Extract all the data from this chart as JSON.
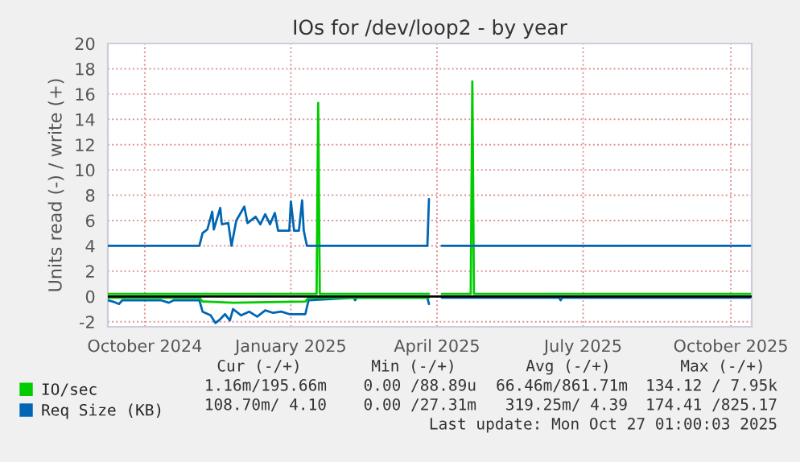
{
  "chart_data": {
    "type": "line",
    "title": "IOs for /dev/loop2 - by year",
    "ylabel": "Units read (-) / write (+)",
    "xlim": [
      "2024-09-23",
      "2025-10-29"
    ],
    "ylim": [
      -2.4,
      20
    ],
    "xticks": [
      {
        "value": "2024-10-16",
        "label": "October 2024"
      },
      {
        "value": "2025-01-15",
        "label": "January 2025"
      },
      {
        "value": "2025-04-16",
        "label": "April 2025"
      },
      {
        "value": "2025-07-16",
        "label": "July 2025"
      },
      {
        "value": "2025-10-16",
        "label": "October 2025"
      }
    ],
    "yticks": [
      -2,
      0,
      2,
      4,
      6,
      8,
      10,
      12,
      14,
      16,
      18,
      20
    ],
    "grid": true,
    "legend": "bottom",
    "ref_lines": [
      {
        "axis": "y",
        "value": 0,
        "color": "#000000"
      }
    ],
    "series": [
      {
        "name": "IO/sec",
        "color": "#00cc00",
        "x": [
          "2024-09-23",
          "2025-01-31",
          "2025-02-01",
          "2025-02-02",
          "2025-04-11",
          "2025-04-12",
          "2025-04-19",
          "2025-05-07",
          "2025-05-08",
          "2025-05-09",
          "2025-10-28"
        ],
        "values": [
          0.2,
          0.2,
          15.3,
          0.2,
          0.2,
          null,
          0.2,
          0.2,
          17.0,
          0.2,
          0.2
        ]
      },
      {
        "name": "Req Size (KB)",
        "color": "#0066b3",
        "x": [
          "2024-09-23",
          "2024-11-19",
          "2024-11-21",
          "2024-11-24",
          "2024-11-27",
          "2024-11-28",
          "2024-12-02",
          "2024-12-03",
          "2024-12-07",
          "2024-12-09",
          "2024-12-12",
          "2024-12-17",
          "2024-12-19",
          "2024-12-24",
          "2024-12-27",
          "2024-12-30",
          "2025-01-02",
          "2025-01-05",
          "2025-01-07",
          "2025-01-14",
          "2025-01-15",
          "2025-01-17",
          "2025-01-20",
          "2025-01-22",
          "2025-01-23",
          "2025-01-25",
          "2025-04-10",
          "2025-04-11",
          "2025-04-12",
          "2025-04-19",
          "2025-10-28"
        ],
        "values": [
          4.0,
          4.0,
          5.0,
          5.3,
          6.7,
          5.3,
          7.0,
          5.7,
          5.8,
          4.0,
          6.0,
          7.1,
          5.8,
          6.3,
          5.7,
          6.5,
          5.7,
          6.6,
          5.2,
          5.2,
          7.5,
          5.2,
          5.2,
          7.6,
          5.2,
          4.0,
          4.0,
          7.7,
          null,
          4.0,
          4.0
        ]
      },
      {
        "color": "#0066b3",
        "x": [
          "2024-09-23",
          "2024-09-26",
          "2024-09-30",
          "2024-10-02",
          "2024-10-26",
          "2024-10-31",
          "2024-11-03",
          "2024-11-19",
          "2024-11-21",
          "2024-11-26",
          "2024-11-29",
          "2024-12-02",
          "2024-12-05",
          "2024-12-08",
          "2024-12-10",
          "2024-12-15",
          "2024-12-20",
          "2024-12-25",
          "2024-12-30",
          "2025-01-04",
          "2025-01-09",
          "2025-01-14",
          "2025-01-24",
          "2025-01-26",
          "2025-02-23",
          "2025-02-24",
          "2025-02-25",
          "2025-04-10",
          "2025-04-11",
          "2025-04-12",
          "2025-04-19",
          "2025-07-01",
          "2025-07-02",
          "2025-07-03",
          "2025-10-28"
        ],
        "values": [
          -0.3,
          -0.4,
          -0.6,
          -0.3,
          -0.3,
          -0.5,
          -0.3,
          -0.3,
          -1.2,
          -1.5,
          -2.1,
          -1.8,
          -1.4,
          -1.9,
          -1.0,
          -1.5,
          -1.2,
          -1.6,
          -1.1,
          -1.3,
          -1.2,
          -1.4,
          -1.4,
          -0.3,
          -0.1,
          -0.3,
          -0.1,
          -0.1,
          -0.6,
          null,
          -0.1,
          -0.1,
          -0.3,
          -0.1,
          -0.1
        ]
      },
      {
        "color": "#00cc00",
        "x": [
          "2024-09-23",
          "2024-11-19",
          "2024-11-21",
          "2024-12-10",
          "2025-01-24",
          "2025-01-26",
          "2025-04-11"
        ],
        "values": [
          -0.1,
          -0.1,
          -0.4,
          -0.5,
          -0.4,
          -0.1,
          -0.1
        ]
      }
    ],
    "annotations": [
      "Cur (-/+)",
      "Min (-/+)",
      "Avg (-/+)",
      "Max (-/+)",
      "1.16m/195.66m",
      "0.00 /88.89u",
      "66.46m/861.71m",
      "134.12 / 7.95k",
      "108.70m/ 4.10",
      "0.00 /27.31m",
      "319.25m/ 4.39",
      "174.41 /825.17",
      "Last update: Mon Oct 27 01:00:03 2025"
    ]
  }
}
